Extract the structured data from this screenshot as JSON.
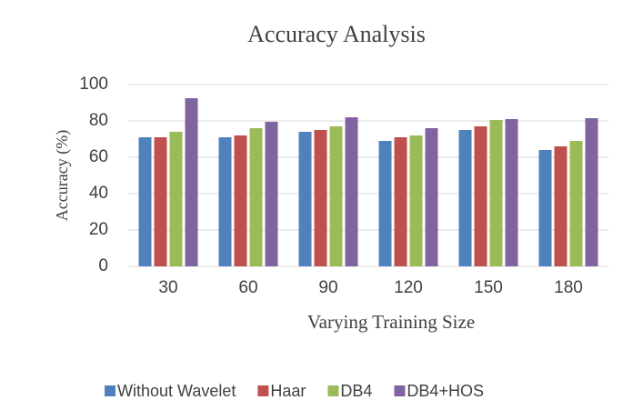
{
  "chart_data": {
    "type": "bar",
    "title": "Accuracy Analysis",
    "x_label": "Varying Training Size",
    "y_label": "Accuracy (%)",
    "categories": [
      "30",
      "60",
      "90",
      "120",
      "150",
      "180"
    ],
    "series": [
      {
        "name": "Without Wavelet",
        "color": "#4f81bd",
        "values": [
          71,
          71,
          74,
          69,
          75,
          64
        ]
      },
      {
        "name": "Haar",
        "color": "#c0504d",
        "values": [
          71,
          72,
          75,
          71,
          77,
          66
        ]
      },
      {
        "name": "DB4",
        "color": "#9bbb59",
        "values": [
          74,
          76,
          77,
          72,
          80.5,
          69
        ]
      },
      {
        "name": "DB4+HOS",
        "color": "#8064a2",
        "values": [
          92.5,
          79.5,
          82,
          76,
          81,
          81.5
        ]
      }
    ],
    "ylim": [
      0,
      100
    ],
    "yticks": [
      0,
      20,
      40,
      60,
      80,
      100
    ],
    "grid": true,
    "legend": "bottom"
  }
}
